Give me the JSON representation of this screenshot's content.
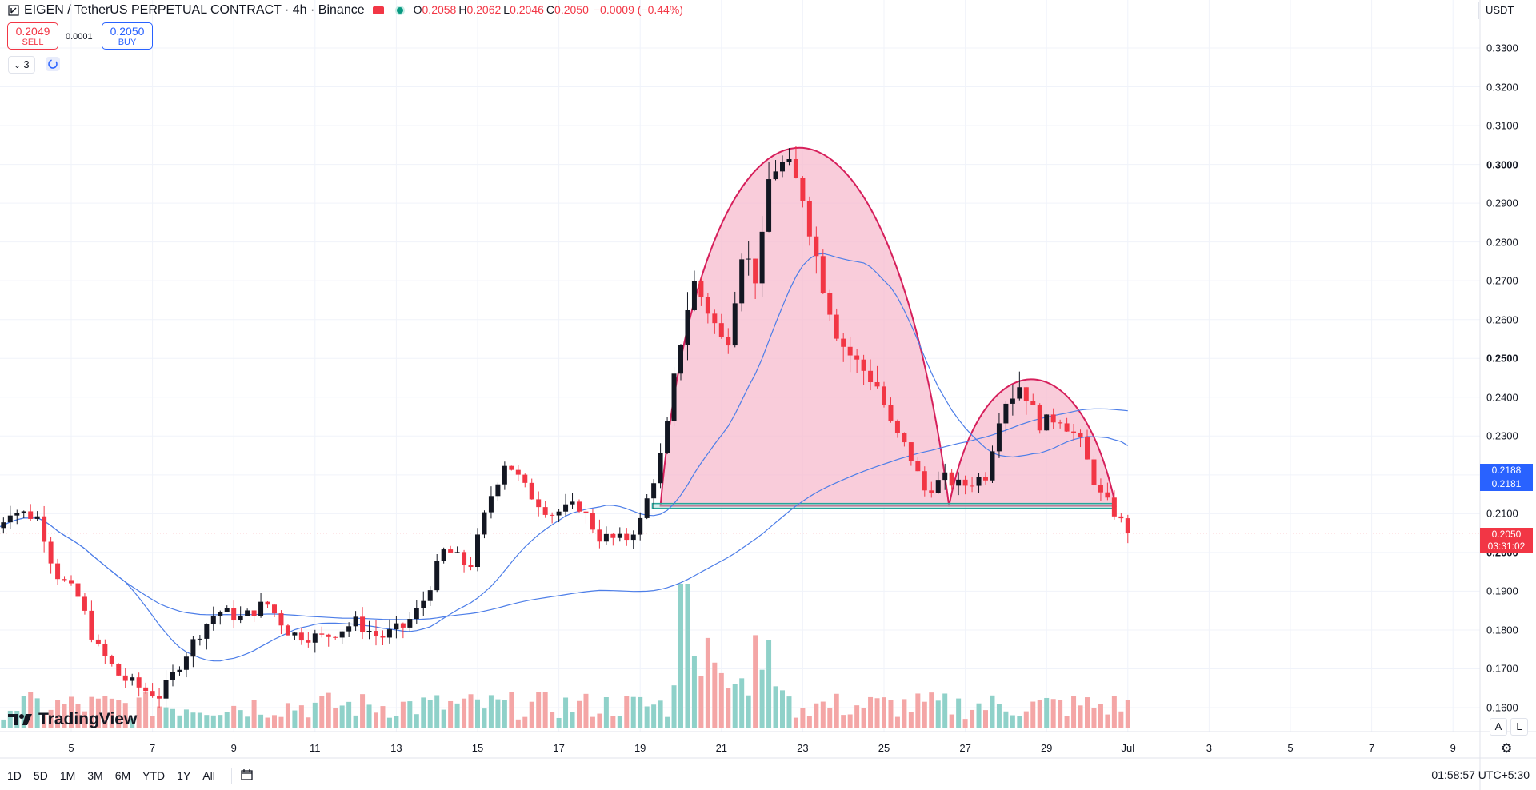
{
  "header": {
    "symbol_title": "EIGEN / TetherUS PERPETUAL CONTRACT · 4h · Binance",
    "ohlc": [
      {
        "k": "O",
        "v": "0.2058"
      },
      {
        "k": "H",
        "v": "0.2062"
      },
      {
        "k": "L",
        "v": "0.2046"
      },
      {
        "k": "C",
        "v": "0.2050"
      },
      {
        "k": "",
        "v": "−0.0009 (−0.44%)"
      }
    ]
  },
  "trade": {
    "sell_price": "0.2049",
    "sell_label": "SELL",
    "buy_price": "0.2050",
    "buy_label": "BUY",
    "spread": "0.0001"
  },
  "indicators_toggle": "3",
  "currency": "USDT",
  "price_tags": {
    "ma_fast": "0.2188",
    "ma_slow": "0.2181",
    "last_price": "0.2050",
    "countdown": "03:31:02"
  },
  "scale_buttons": [
    "A",
    "L"
  ],
  "timeframes": [
    "1D",
    "5D",
    "1M",
    "3M",
    "6M",
    "YTD",
    "1Y",
    "All"
  ],
  "clock": "01:58:57 UTC+5:30",
  "watermark": "TradingView",
  "colors": {
    "up": "#131722",
    "down": "#f23645",
    "vol_up": "#8fd1c9",
    "vol_down": "#f4a6a6",
    "ma": "#4d7ee8",
    "pattern_stroke": "#d61f5b",
    "pattern_fill": "#f7b6cb",
    "neckline": "#26a69a",
    "tag_blue": "#2962ff",
    "tag_red": "#f23645"
  },
  "chart_data": {
    "type": "candlestick",
    "timeframe": "4h",
    "y_axis": {
      "ticks": [
        "0.3300",
        "0.3200",
        "0.3100",
        "0.3000",
        "0.2900",
        "0.2800",
        "0.2700",
        "0.2600",
        "0.2500",
        "0.2400",
        "0.2300",
        "0.2200",
        "0.2100",
        "0.2000",
        "0.1900",
        "0.1800",
        "0.1700",
        "0.1600"
      ],
      "bold_ticks": [
        "0.3000",
        "0.2500",
        "0.2000"
      ],
      "range": [
        0.1555,
        0.3345
      ]
    },
    "x_axis": {
      "ticks": [
        "5",
        "7",
        "9",
        "11",
        "13",
        "15",
        "17",
        "19",
        "21",
        "23",
        "25",
        "27",
        "29",
        "Jul",
        "3",
        "5",
        "7",
        "9"
      ]
    },
    "last_price": 0.205,
    "moving_averages": [
      {
        "fast_last": 0.2188
      },
      {
        "slow_last": 0.2181
      }
    ],
    "pattern": {
      "kind": "cup/arc",
      "first_arc_peak": 0.315,
      "second_arc_peak": 0.248,
      "neckline": 0.212
    },
    "candles_approx": [
      {
        "t": "Jun 3 20:00",
        "o": 0.206,
        "h": 0.211,
        "l": 0.2,
        "c": 0.21
      },
      {
        "t": "Jun 4 12:00",
        "o": 0.214,
        "h": 0.219,
        "l": 0.209,
        "c": 0.212
      },
      {
        "t": "Jun 5 00:00",
        "o": 0.209,
        "h": 0.21,
        "l": 0.185,
        "c": 0.189
      },
      {
        "t": "Jun 6 00:00",
        "o": 0.176,
        "h": 0.18,
        "l": 0.164,
        "c": 0.168
      },
      {
        "t": "Jun 7 00:00",
        "o": 0.163,
        "h": 0.168,
        "l": 0.159,
        "c": 0.164
      },
      {
        "t": "Jun 8 00:00",
        "o": 0.176,
        "h": 0.183,
        "l": 0.17,
        "c": 0.18
      },
      {
        "t": "Jun 8 12:00",
        "o": 0.184,
        "h": 0.19,
        "l": 0.18,
        "c": 0.189
      },
      {
        "t": "Jun 10 00:00",
        "o": 0.185,
        "h": 0.189,
        "l": 0.179,
        "c": 0.183
      },
      {
        "t": "Jun 11 00:00",
        "o": 0.179,
        "h": 0.184,
        "l": 0.172,
        "c": 0.178
      },
      {
        "t": "Jun 13 00:00",
        "o": 0.18,
        "h": 0.184,
        "l": 0.176,
        "c": 0.179
      },
      {
        "t": "Jun 14 00:00",
        "o": 0.192,
        "h": 0.205,
        "l": 0.188,
        "c": 0.204
      },
      {
        "t": "Jun 15 12:00",
        "o": 0.208,
        "h": 0.229,
        "l": 0.205,
        "c": 0.224
      },
      {
        "t": "Jun 16 12:00",
        "o": 0.218,
        "h": 0.22,
        "l": 0.208,
        "c": 0.21
      },
      {
        "t": "Jun 17 12:00",
        "o": 0.211,
        "h": 0.214,
        "l": 0.204,
        "c": 0.206
      },
      {
        "t": "Jun 18 12:00",
        "o": 0.204,
        "h": 0.206,
        "l": 0.197,
        "c": 0.202
      },
      {
        "t": "Jun 19 12:00",
        "o": 0.212,
        "h": 0.23,
        "l": 0.21,
        "c": 0.228
      },
      {
        "t": "Jun 20 00:00",
        "o": 0.238,
        "h": 0.279,
        "l": 0.236,
        "c": 0.272
      },
      {
        "t": "Jun 21 12:00",
        "o": 0.268,
        "h": 0.283,
        "l": 0.262,
        "c": 0.279
      },
      {
        "t": "Jun 22 04:00",
        "o": 0.278,
        "h": 0.315,
        "l": 0.276,
        "c": 0.3
      },
      {
        "t": "Jun 22 20:00",
        "o": 0.299,
        "h": 0.304,
        "l": 0.29,
        "c": 0.291
      },
      {
        "t": "Jun 23 12:00",
        "o": 0.28,
        "h": 0.282,
        "l": 0.262,
        "c": 0.265
      },
      {
        "t": "Jun 24 04:00",
        "o": 0.256,
        "h": 0.258,
        "l": 0.246,
        "c": 0.248
      },
      {
        "t": "Jun 25 00:00",
        "o": 0.242,
        "h": 0.244,
        "l": 0.224,
        "c": 0.227
      },
      {
        "t": "Jun 25 12:00",
        "o": 0.234,
        "h": 0.236,
        "l": 0.226,
        "c": 0.23
      },
      {
        "t": "Jun 26 00:00",
        "o": 0.22,
        "h": 0.223,
        "l": 0.21,
        "c": 0.215
      },
      {
        "t": "Jun 26 20:00",
        "o": 0.214,
        "h": 0.218,
        "l": 0.211,
        "c": 0.217
      },
      {
        "t": "Jun 27 12:00",
        "o": 0.217,
        "h": 0.221,
        "l": 0.215,
        "c": 0.22
      },
      {
        "t": "Jun 28 00:00",
        "o": 0.226,
        "h": 0.24,
        "l": 0.225,
        "c": 0.239
      },
      {
        "t": "Jun 28 12:00",
        "o": 0.24,
        "h": 0.247,
        "l": 0.236,
        "c": 0.245
      },
      {
        "t": "Jun 29 00:00",
        "o": 0.238,
        "h": 0.239,
        "l": 0.223,
        "c": 0.226
      },
      {
        "t": "Jun 29 12:00",
        "o": 0.233,
        "h": 0.236,
        "l": 0.227,
        "c": 0.23
      },
      {
        "t": "Jun 30 00:00",
        "o": 0.226,
        "h": 0.229,
        "l": 0.218,
        "c": 0.22
      },
      {
        "t": "Jun 30 12:00",
        "o": 0.217,
        "h": 0.218,
        "l": 0.212,
        "c": 0.213
      },
      {
        "t": "Jul 1 00:00",
        "o": 0.212,
        "h": 0.214,
        "l": 0.205,
        "c": 0.206
      },
      {
        "t": "Jul 1 04:00",
        "o": 0.2058,
        "h": 0.2062,
        "l": 0.2046,
        "c": 0.205
      }
    ]
  }
}
